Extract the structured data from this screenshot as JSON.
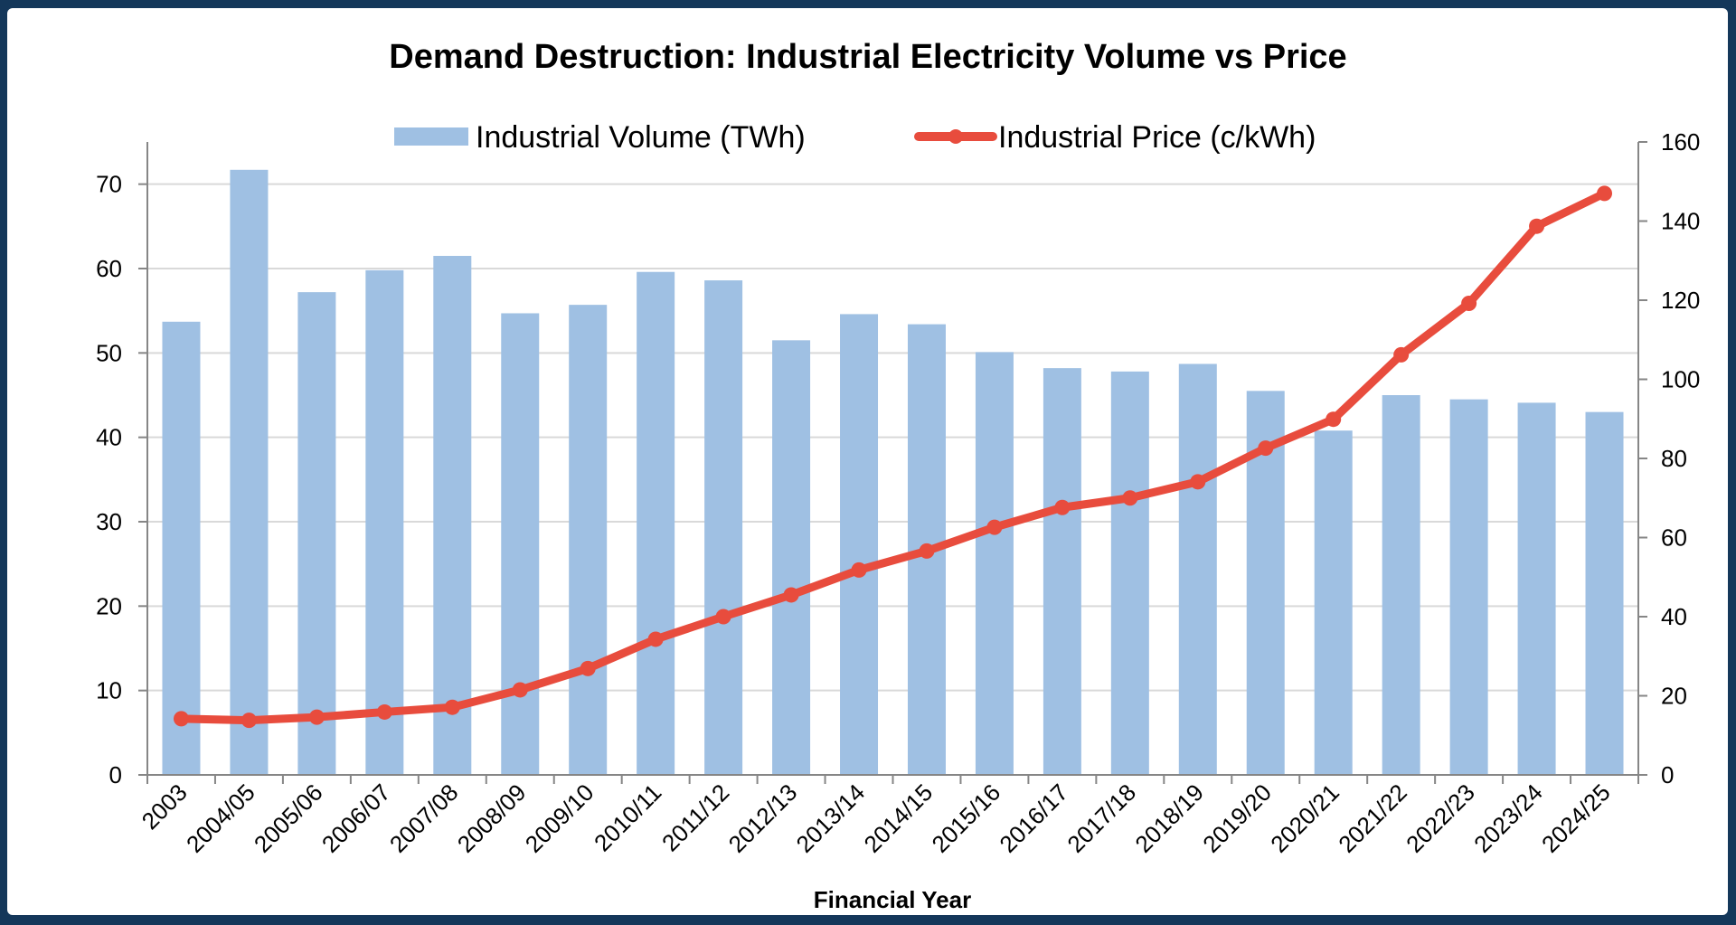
{
  "chart_data": {
    "type": "bar",
    "title": "Demand Destruction: Industrial Electricity Volume vs Price",
    "xlabel": "Financial Year",
    "ylabel": "",
    "y2label": "",
    "categories": [
      "2003",
      "2004/05",
      "2005/06",
      "2006/07",
      "2007/08",
      "2008/09",
      "2009/10",
      "2010/11",
      "2011/12",
      "2012/13",
      "2013/14",
      "2014/15",
      "2015/16",
      "2016/17",
      "2017/18",
      "2018/19",
      "2019/20",
      "2020/21",
      "2021/22",
      "2022/23",
      "2023/24",
      "2024/25"
    ],
    "series": [
      {
        "name": "Industrial Volume (TWh)",
        "type": "bar",
        "axis": "left",
        "color": "#9fc0e3",
        "values": [
          53.7,
          71.7,
          57.2,
          59.8,
          61.5,
          54.7,
          55.7,
          59.6,
          58.6,
          51.5,
          54.6,
          53.4,
          50.1,
          48.2,
          47.8,
          48.7,
          45.5,
          40.8,
          45.0,
          44.5,
          44.1,
          43.0
        ]
      },
      {
        "name": "Industrial Price (c/kWh)",
        "type": "line",
        "axis": "right",
        "color": "#e84c3d",
        "values": [
          14.2,
          13.8,
          14.6,
          15.9,
          17.1,
          21.5,
          26.9,
          34.3,
          40.0,
          45.5,
          51.8,
          56.6,
          62.6,
          67.6,
          70.0,
          74.1,
          82.6,
          89.9,
          106.2,
          119.2,
          138.7,
          147.0
        ]
      }
    ],
    "ylim": [
      0,
      75
    ],
    "y2lim": [
      0,
      160
    ],
    "yticks": [
      0,
      10,
      20,
      30,
      40,
      50,
      60,
      70
    ],
    "y2ticks": [
      0,
      20,
      40,
      60,
      80,
      100,
      120,
      140,
      160
    ],
    "grid": true,
    "legend_position": "top-center"
  },
  "colors": {
    "frame": "#14375a",
    "grid": "#d9d9d9",
    "axis": "#868686"
  }
}
